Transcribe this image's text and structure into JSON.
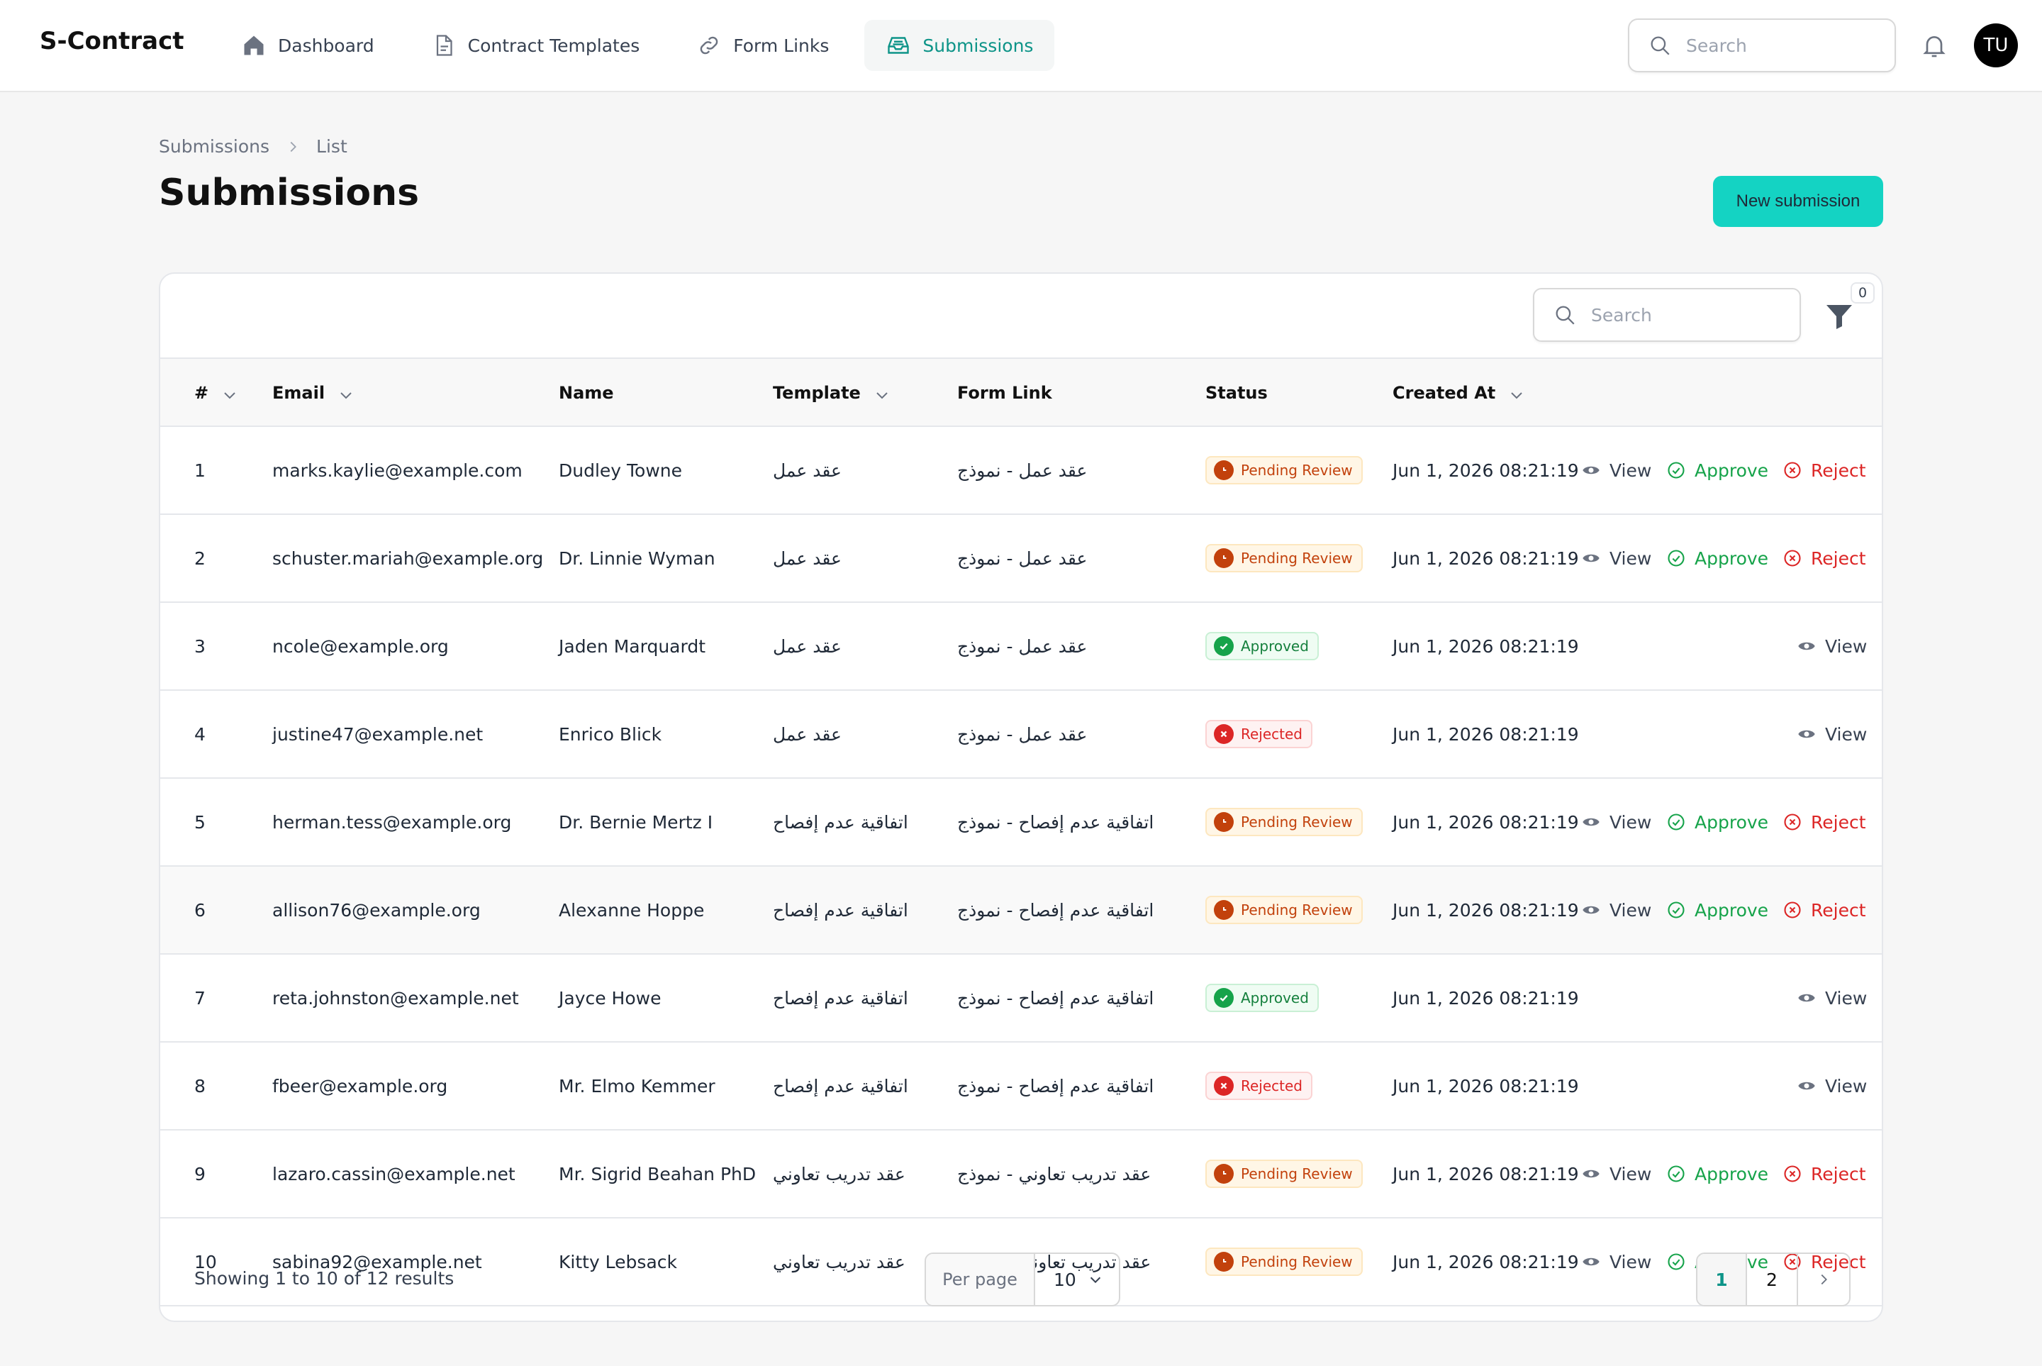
{
  "app": {
    "brand": "S-Contract"
  },
  "nav": [
    {
      "label": "Dashboard",
      "icon": "home-icon",
      "active": false
    },
    {
      "label": "Contract Templates",
      "icon": "document-icon",
      "active": false
    },
    {
      "label": "Form Links",
      "icon": "link-icon",
      "active": false
    },
    {
      "label": "Submissions",
      "icon": "inbox-icon",
      "active": true
    }
  ],
  "header": {
    "search_placeholder": "Search",
    "avatar_initials": "TU"
  },
  "breadcrumb": [
    "Submissions",
    "List"
  ],
  "page": {
    "title": "Submissions",
    "new_button": "New submission"
  },
  "table": {
    "search_placeholder": "Search",
    "filter_count": "0",
    "columns": [
      "#",
      "Email",
      "Name",
      "Template",
      "Form Link",
      "Status",
      "Created At"
    ],
    "actions": {
      "view": "View",
      "approve": "Approve",
      "reject": "Reject"
    },
    "rows": [
      {
        "id": "1",
        "email": "marks.kaylie@example.com",
        "name": "Dudley Towne",
        "template": "عقد عمل",
        "form_link": "عقد عمل - نموذج",
        "status": "Pending Review",
        "created": "Jun 1, 2026 08:21:19"
      },
      {
        "id": "2",
        "email": "schuster.mariah@example.org",
        "name": "Dr. Linnie Wyman",
        "template": "عقد عمل",
        "form_link": "عقد عمل - نموذج",
        "status": "Pending Review",
        "created": "Jun 1, 2026 08:21:19"
      },
      {
        "id": "3",
        "email": "ncole@example.org",
        "name": "Jaden Marquardt",
        "template": "عقد عمل",
        "form_link": "عقد عمل - نموذج",
        "status": "Approved",
        "created": "Jun 1, 2026 08:21:19"
      },
      {
        "id": "4",
        "email": "justine47@example.net",
        "name": "Enrico Blick",
        "template": "عقد عمل",
        "form_link": "عقد عمل - نموذج",
        "status": "Rejected",
        "created": "Jun 1, 2026 08:21:19"
      },
      {
        "id": "5",
        "email": "herman.tess@example.org",
        "name": "Dr. Bernie Mertz I",
        "template": "اتفاقية عدم إفصاح",
        "form_link": "اتفاقية عدم إفصاح - نموذج",
        "status": "Pending Review",
        "created": "Jun 1, 2026 08:21:19"
      },
      {
        "id": "6",
        "email": "allison76@example.org",
        "name": "Alexanne Hoppe",
        "template": "اتفاقية عدم إفصاح",
        "form_link": "اتفاقية عدم إفصاح - نموذج",
        "status": "Pending Review",
        "created": "Jun 1, 2026 08:21:19"
      },
      {
        "id": "7",
        "email": "reta.johnston@example.net",
        "name": "Jayce Howe",
        "template": "اتفاقية عدم إفصاح",
        "form_link": "اتفاقية عدم إفصاح - نموذج",
        "status": "Approved",
        "created": "Jun 1, 2026 08:21:19"
      },
      {
        "id": "8",
        "email": "fbeer@example.org",
        "name": "Mr. Elmo Kemmer",
        "template": "اتفاقية عدم إفصاح",
        "form_link": "اتفاقية عدم إفصاح - نموذج",
        "status": "Rejected",
        "created": "Jun 1, 2026 08:21:19"
      },
      {
        "id": "9",
        "email": "lazaro.cassin@example.net",
        "name": "Mr. Sigrid Beahan PhD",
        "template": "عقد تدريب تعاوني",
        "form_link": "عقد تدريب تعاوني - نموذج",
        "status": "Pending Review",
        "created": "Jun 1, 2026 08:21:19"
      },
      {
        "id": "10",
        "email": "sabina92@example.net",
        "name": "Kitty Lebsack",
        "template": "عقد تدريب تعاوني",
        "form_link": "عقد تدريب تعاوني - نموذج",
        "status": "Pending Review",
        "created": "Jun 1, 2026 08:21:19"
      }
    ]
  },
  "footer": {
    "showing": "Showing 1 to 10 of 12 results",
    "per_page_label": "Per page",
    "per_page_value": "10",
    "pages": [
      "1",
      "2"
    ],
    "current_page": "1"
  },
  "colors": {
    "accent": "#14d3c3",
    "accent_text": "#0d9488",
    "pending": "#c2410c",
    "approved": "#16a34a",
    "rejected": "#dc2626"
  }
}
